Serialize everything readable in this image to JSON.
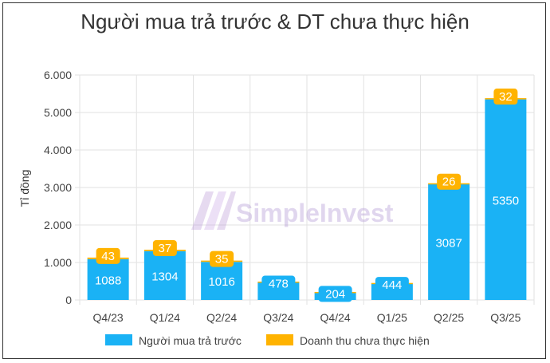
{
  "chart_data": {
    "type": "bar",
    "stacked": true,
    "title": "Người mua trả trước & DT chưa thực hiện",
    "ylabel": "Tỉ đồng",
    "xlabel": "",
    "categories": [
      "Q4/23",
      "Q1/24",
      "Q2/24",
      "Q3/24",
      "Q4/24",
      "Q1/25",
      "Q2/25",
      "Q3/25"
    ],
    "ylim": [
      0,
      6000
    ],
    "yticks": [
      0,
      1000,
      2000,
      3000,
      4000,
      5000,
      6000
    ],
    "ytick_labels": [
      "0",
      "1.000",
      "2.000",
      "3.000",
      "4.000",
      "5.000",
      "6.000"
    ],
    "grid": true,
    "legend_position": "bottom",
    "series": [
      {
        "name": "Người mua trả trước",
        "color": "#1ab2f5",
        "values": [
          1088,
          1304,
          1016,
          478,
          204,
          444,
          3087,
          5350
        ],
        "labels": [
          "1088",
          "1304",
          "1016",
          "478",
          "204",
          "444",
          "3087",
          "5350"
        ]
      },
      {
        "name": "Doanh thu chưa thực hiện",
        "color": "#ffb300",
        "values": [
          43,
          37,
          35,
          12,
          10,
          10,
          26,
          32
        ],
        "labels": [
          "43",
          "37",
          "35",
          "",
          "",
          "",
          "26",
          "32"
        ]
      }
    ],
    "watermark": "SimpleInvest"
  }
}
